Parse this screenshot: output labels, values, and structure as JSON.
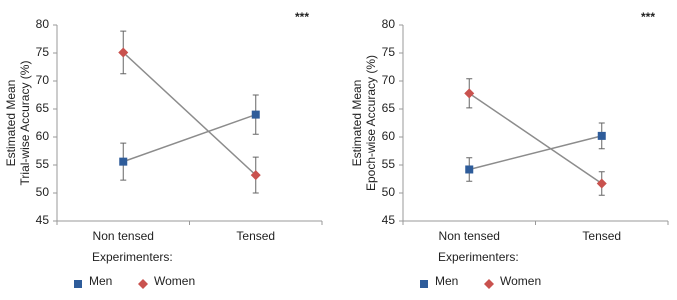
{
  "chart_data": [
    {
      "type": "line",
      "annotation": "***",
      "ylabel": [
        "Estimated Mean",
        "Trial-wise Accuracy (%)"
      ],
      "categories": [
        "Non tensed",
        "Tensed"
      ],
      "legend_title": "Experimenters:",
      "series": [
        {
          "name": "Men",
          "color": "#2e5c9a",
          "marker": "square",
          "values": [
            55.6,
            64.0
          ],
          "errors": [
            3.3,
            3.5
          ]
        },
        {
          "name": "Women",
          "color": "#c9524e",
          "marker": "diamond",
          "values": [
            75.1,
            53.2
          ],
          "errors": [
            3.8,
            3.2
          ]
        }
      ],
      "ylim": [
        45,
        80
      ],
      "yticks": [
        45,
        50,
        55,
        60,
        65,
        70,
        75,
        80
      ]
    },
    {
      "type": "line",
      "annotation": "***",
      "ylabel": [
        "Estimated Mean",
        "Epoch-wise Accuracy (%)"
      ],
      "categories": [
        "Non tensed",
        "Tensed"
      ],
      "legend_title": "Experimenters:",
      "series": [
        {
          "name": "Men",
          "color": "#2e5c9a",
          "marker": "square",
          "values": [
            54.2,
            60.2
          ],
          "errors": [
            2.1,
            2.3
          ]
        },
        {
          "name": "Women",
          "color": "#c9524e",
          "marker": "diamond",
          "values": [
            67.8,
            51.7
          ],
          "errors": [
            2.6,
            2.1
          ]
        }
      ],
      "ylim": [
        45,
        80
      ],
      "yticks": [
        45,
        50,
        55,
        60,
        65,
        70,
        75,
        80
      ]
    }
  ]
}
